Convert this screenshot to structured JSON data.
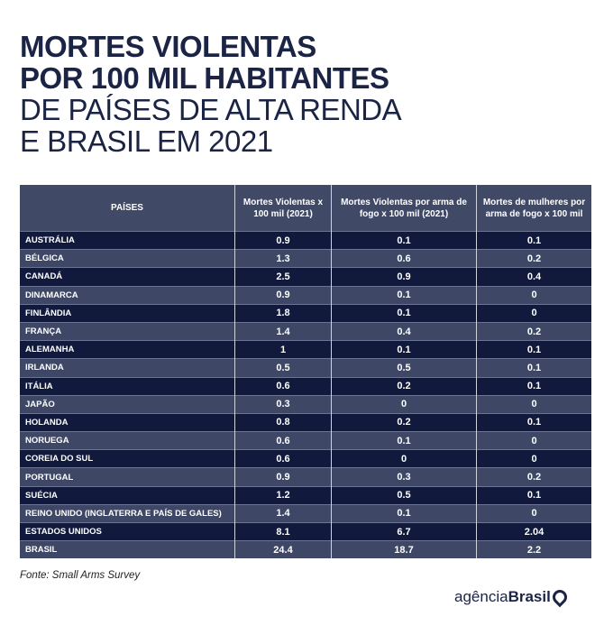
{
  "title": {
    "line1": "MORTES VIOLENTAS",
    "line2": "POR 100 MIL HABITANTES",
    "line3": "DE PAÍSES DE ALTA RENDA",
    "line4": "E BRASIL EM 2021"
  },
  "headers": [
    "PAÍSES",
    "Mortes Violentas x 100 mil (2021)",
    "Mortes Violentas por arma de fogo x 100 mil (2021)",
    "Mortes de mulheres por arma de fogo x 100 mil"
  ],
  "rows": [
    [
      "AUSTRÁLIA",
      "0.9",
      "0.1",
      "0.1"
    ],
    [
      "BÉLGICA",
      "1.3",
      "0.6",
      "0.2"
    ],
    [
      "CANADÁ",
      "2.5",
      "0.9",
      "0.4"
    ],
    [
      "DINAMARCA",
      "0.9",
      "0.1",
      "0"
    ],
    [
      "FINLÂNDIA",
      "1.8",
      "0.1",
      "0"
    ],
    [
      "FRANÇA",
      "1.4",
      "0.4",
      "0.2"
    ],
    [
      "ALEMANHA",
      "1",
      "0.1",
      "0.1"
    ],
    [
      "IRLANDA",
      "0.5",
      "0.5",
      "0.1"
    ],
    [
      "ITÁLIA",
      "0.6",
      "0.2",
      "0.1"
    ],
    [
      "JAPÃO",
      "0.3",
      "0",
      "0"
    ],
    [
      "HOLANDA",
      "0.8",
      "0.2",
      "0.1"
    ],
    [
      "NORUEGA",
      "0.6",
      "0.1",
      "0"
    ],
    [
      "COREIA DO SUL",
      "0.6",
      "0",
      "0"
    ],
    [
      "PORTUGAL",
      "0.9",
      "0.3",
      "0.2"
    ],
    [
      "SUÉCIA",
      "1.2",
      "0.5",
      "0.1"
    ],
    [
      "REINO UNIDO (INGLATERRA E PAÍS DE GALES)",
      "1.4",
      "0.1",
      "0"
    ],
    [
      "ESTADOS UNIDOS",
      "8.1",
      "6.7",
      "2.04"
    ],
    [
      "BRASIL",
      "24.4",
      "18.7",
      "2.2"
    ]
  ],
  "source": "Fonte: Small Arms Survey",
  "logo": {
    "light": "agência",
    "bold": "Brasil"
  },
  "colors": {
    "dark_row": "#111a3c",
    "light_row": "#3e4866",
    "title": "#1b2444"
  }
}
